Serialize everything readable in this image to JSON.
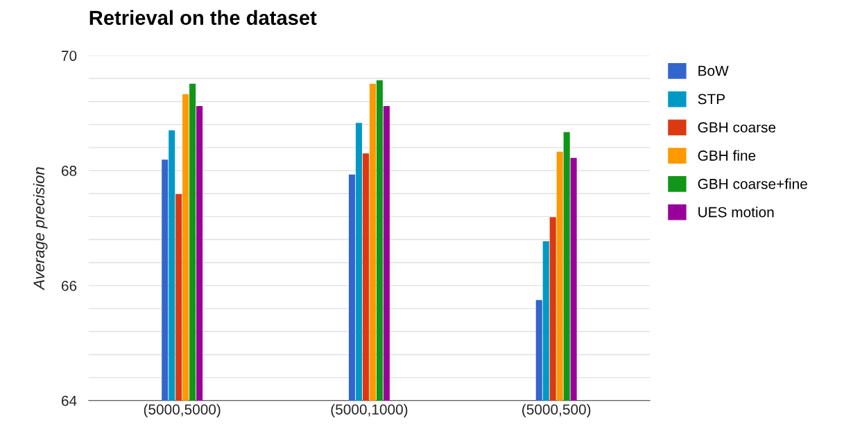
{
  "chart_data": {
    "type": "bar",
    "title": "Retrieval on the dataset",
    "ylabel": "Average precision",
    "categories": [
      "(5000,5000)",
      "(5000,1000)",
      "(5000,500)"
    ],
    "series": [
      {
        "name": "BoW",
        "color": "#3366cc",
        "values": [
          68.19,
          67.93,
          65.75
        ]
      },
      {
        "name": "STP",
        "color": "#0099c6",
        "values": [
          68.7,
          68.83,
          66.77
        ]
      },
      {
        "name": "GBH coarse",
        "color": "#dc3912",
        "values": [
          67.59,
          68.3,
          67.19
        ]
      },
      {
        "name": "GBH fine",
        "color": "#ff9900",
        "values": [
          69.33,
          69.51,
          68.33
        ]
      },
      {
        "name": "GBH coarse+fine",
        "color": "#109618",
        "values": [
          69.51,
          69.57,
          68.67
        ]
      },
      {
        "name": "UES motion",
        "color": "#990099",
        "values": [
          69.12,
          69.12,
          68.22
        ]
      }
    ],
    "ylim": [
      64,
      70
    ],
    "yticks": [
      64,
      {
        "value": 64.4,
        "label": null
      },
      {
        "value": 64.8,
        "label": null
      },
      {
        "value": 65.2,
        "label": null
      },
      {
        "value": 65.6,
        "label": null
      },
      66,
      {
        "value": 66.4,
        "label": null
      },
      {
        "value": 66.8,
        "label": null
      },
      {
        "value": 67.2,
        "label": null
      },
      {
        "value": 67.6,
        "label": null
      },
      68,
      {
        "value": 68.4,
        "label": null
      },
      {
        "value": 68.8,
        "label": null
      },
      {
        "value": 69.2,
        "label": null
      },
      {
        "value": 69.6,
        "label": null
      },
      70
    ],
    "grid": "y",
    "legend": "right"
  }
}
